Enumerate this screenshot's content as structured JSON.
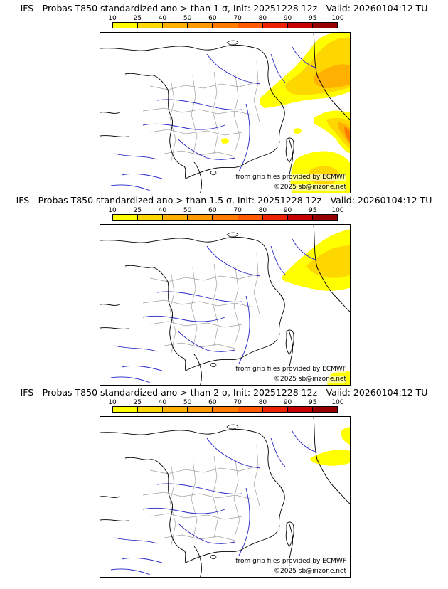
{
  "panels": [
    {
      "title": "IFS - Probas T850  standardized ano > than 1 σ, Init: 20251228 12z - Valid: 20260104:12 TU",
      "source_text": "from grib files provided by ECMWF",
      "copyright_text": "©2025 sb@irizone.net",
      "probability_areas": [
        {
          "region": "alps-and-north-italy",
          "probability_percent": "10-40"
        },
        {
          "region": "central-italy",
          "probability_percent": "10-70"
        },
        {
          "region": "south-of-corsica-sardinia",
          "probability_percent": "10-25"
        }
      ]
    },
    {
      "title": "IFS - Probas T850  standardized ano > than 1.5 σ, Init: 20251228 12z - Valid: 20260104:12 TU",
      "source_text": "from grib files provided by ECMWF",
      "copyright_text": "©2025 sb@irizone.net",
      "probability_areas": [
        {
          "region": "switzerland-and-north-italy",
          "probability_percent": "10-25"
        }
      ]
    },
    {
      "title": "IFS - Probas T850  standardized ano > than 2 σ, Init: 20251228 12z - Valid: 20260104:12 TU",
      "source_text": "from grib files provided by ECMWF",
      "copyright_text": "©2025 sb@irizone.net",
      "probability_areas": [
        {
          "region": "east-switzerland",
          "probability_percent": "10-25"
        }
      ]
    }
  ],
  "color_scale": {
    "labels": [
      "10",
      "25",
      "40",
      "50",
      "60",
      "70",
      "80",
      "90",
      "95",
      "100"
    ],
    "colors": [
      "#ffff00",
      "#ffd700",
      "#ffb000",
      "#ff9a00",
      "#ff7c00",
      "#ff5a00",
      "#ee2200",
      "#c80000",
      "#960000",
      "#5a0000"
    ]
  },
  "map_colors": {
    "coast": "#000000",
    "rivers": "#2525c8",
    "borders_internal": "#a0a0a0"
  }
}
